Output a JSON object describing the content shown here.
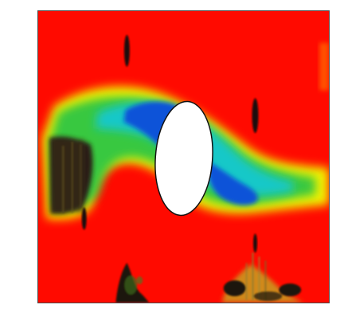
{
  "figure": {
    "kind": "flow-field-heatmap",
    "obstacle": "ellipse",
    "colors": {
      "background_field": "#ff0a00",
      "wake_green": "#37c840",
      "wake_yellow": "#f2f200",
      "wake_blue": "#0a52d8",
      "dark_regions": "#1a1a10",
      "obstacle_fill": "#ffffff",
      "frame_border": "#4a4a4a"
    }
  }
}
